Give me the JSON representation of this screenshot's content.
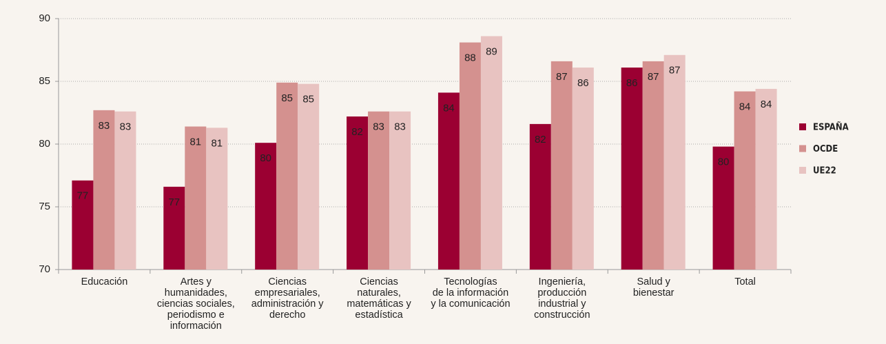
{
  "chart_data": {
    "type": "bar",
    "categories": [
      "Educación",
      "Artes y\nhumanidades,\nciencias sociales,\nperiodismo e\ninformación",
      "Ciencias\nempresariales,\nadministración y\nderecho",
      "Ciencias\nnaturales,\nmatemáticas y\nestadística",
      "Tecnologías\nde la información\ny la comunicación",
      "Ingeniería,\nproducción\nindustrial y\nconstrucción",
      "Salud y\nbienestar",
      "Total"
    ],
    "series": [
      {
        "name": "ESPAÑA",
        "color": "#9b0032",
        "values": [
          77.1,
          76.6,
          80.1,
          82.2,
          84.1,
          81.6,
          86.1,
          79.8
        ],
        "value_labels": [
          "77",
          "77",
          "80",
          "82",
          "84",
          "82",
          "86",
          "80"
        ]
      },
      {
        "name": "OCDE",
        "color": "#d4918f",
        "values": [
          82.7,
          81.4,
          84.9,
          82.6,
          88.1,
          86.6,
          86.6,
          84.2
        ],
        "value_labels": [
          "83",
          "81",
          "85",
          "83",
          "88",
          "87",
          "87",
          "84"
        ]
      },
      {
        "name": "UE22",
        "color": "#e8c3c1",
        "values": [
          82.6,
          81.3,
          84.8,
          82.6,
          88.6,
          86.1,
          87.1,
          84.4
        ],
        "value_labels": [
          "83",
          "81",
          "85",
          "83",
          "89",
          "86",
          "87",
          "84"
        ]
      }
    ],
    "ylim": [
      70,
      90
    ],
    "yticks": [
      70,
      75,
      80,
      85,
      90
    ],
    "grid": true,
    "legend": "right"
  }
}
